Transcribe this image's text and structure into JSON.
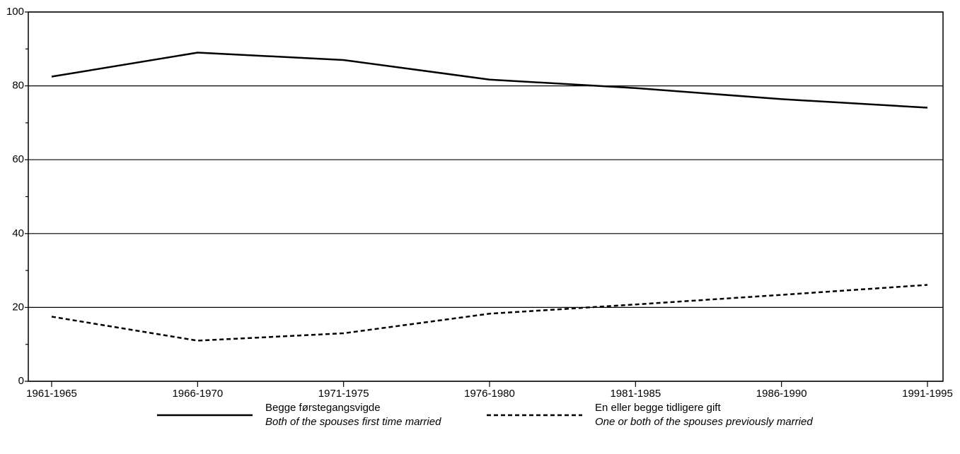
{
  "chart_data": {
    "type": "line",
    "categories": [
      "1961-1965",
      "1966-1970",
      "1971-1975",
      "1976-1980",
      "1981-1985",
      "1986-1990",
      "1991-1995"
    ],
    "series": [
      {
        "name": "Begge førstegangsvigde",
        "name_en": "Both of the spouses first time married",
        "color": "#000000",
        "dash": "solid",
        "values": [
          82.5,
          89,
          87,
          81.7,
          79.4,
          76.4,
          74.1
        ]
      },
      {
        "name": "En eller begge tidligere gift",
        "name_en": "One or both of the spouses previously married",
        "color": "#000000",
        "dash": "dashed",
        "values": [
          17.5,
          11,
          13,
          18.3,
          20.8,
          23.4,
          26.1
        ]
      }
    ],
    "ylim": [
      0,
      100
    ],
    "yticks": [
      0,
      20,
      40,
      60,
      80,
      100
    ],
    "minor_yticks": [
      10,
      30,
      50,
      70,
      90
    ],
    "grid": true
  }
}
